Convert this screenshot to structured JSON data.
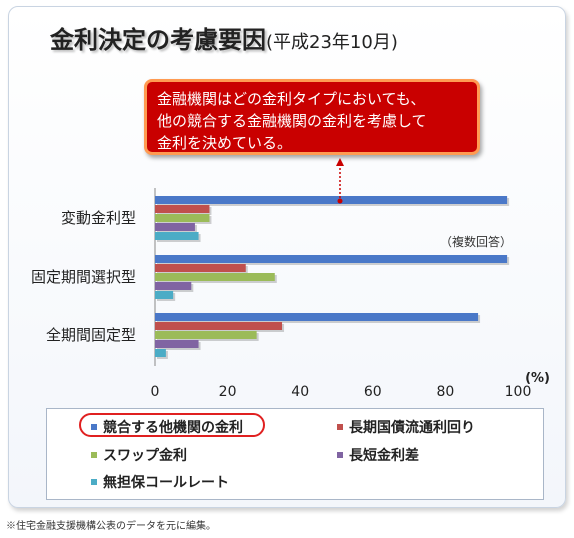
{
  "title": "金利決定の考慮要因",
  "title_sub": "(平成23年10月)",
  "callout": {
    "lines": [
      "金融機関はどの金利タイプにおいても、",
      "他の競合する金融機関の金利を考慮して",
      "金利を決めている。"
    ]
  },
  "note": "（複数回答）",
  "footnote": "※住宅金融支援機構公表のデータを元に編集。",
  "colors": {
    "series": [
      "#4a78c8",
      "#c0504d",
      "#9bbb59",
      "#8064a2",
      "#4bacc6"
    ],
    "highlight": "#e02020",
    "callout_bg": "#c90000"
  },
  "chart_data": {
    "type": "bar",
    "orientation": "horizontal",
    "categories": [
      "変動金利型",
      "固定期間選択型",
      "全期間固定型"
    ],
    "series": [
      {
        "name": "競合する他機関の金利",
        "values": [
          97,
          97,
          89
        ]
      },
      {
        "name": "長期国債流通利回り",
        "values": [
          15,
          25,
          35
        ]
      },
      {
        "name": "スワップ金利",
        "values": [
          15,
          33,
          28
        ]
      },
      {
        "name": "長短金利差",
        "values": [
          11,
          10,
          12
        ]
      },
      {
        "name": "無担保コールレート",
        "values": [
          12,
          5,
          3
        ]
      }
    ],
    "x_ticks": [
      "0",
      "20",
      "40",
      "60",
      "80",
      "100"
    ],
    "xlim": [
      0,
      100
    ],
    "unit_label": "(%)",
    "legend_position": "bottom",
    "grid": false
  }
}
